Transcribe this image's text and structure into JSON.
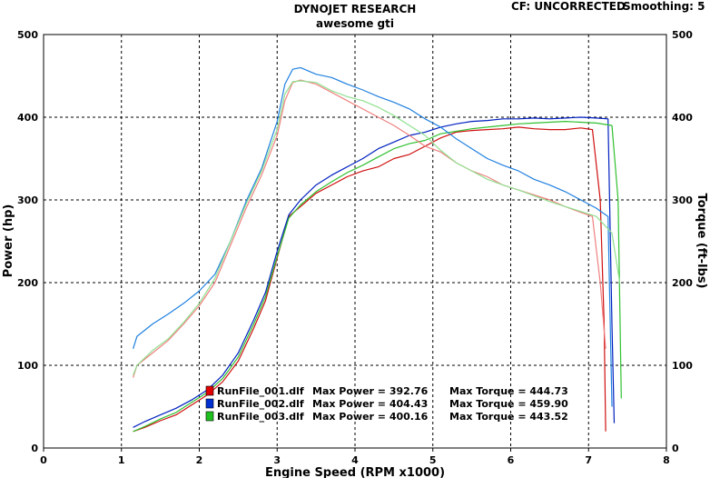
{
  "header": {
    "title": "DYNOJET RESEARCH",
    "subtitle": "awesome gti",
    "cf": "CF: UNCORRECTED",
    "smoothing": "Smoothing: 5"
  },
  "chart_data": {
    "type": "line",
    "title": "DYNOJET RESEARCH",
    "subtitle": "awesome gti",
    "xlabel": "Engine Speed (RPM x1000)",
    "ylabel": "Power (hp)",
    "y2label": "Torque (ft-lbs)",
    "xlim": [
      0,
      8
    ],
    "ylim": [
      0,
      500
    ],
    "y2lim": [
      0,
      500
    ],
    "grid": true,
    "xticks": [
      "0",
      "1",
      "2",
      "3",
      "4",
      "5",
      "6",
      "7",
      "8"
    ],
    "yticks": [
      "0",
      "100",
      "200",
      "300",
      "400",
      "500"
    ],
    "legend_position": "bottom-center",
    "legend": [
      {
        "name": "RunFile_001.dlf",
        "power_text": "Max Power = 392.76",
        "torque_text": "Max Torque = 444.73",
        "color": "#e00000"
      },
      {
        "name": "RunFile_002.dlf",
        "power_text": "Max Power = 404.43",
        "torque_text": "Max Torque = 459.90",
        "color": "#0030d0"
      },
      {
        "name": "RunFile_003.dlf",
        "power_text": "Max Power = 400.16",
        "torque_text": "Max Torque = 443.52",
        "color": "#20c020"
      }
    ],
    "series": [
      {
        "name": "RunFile_001.dlf Power",
        "color": "#d01010",
        "x": [
          1.15,
          1.3,
          1.5,
          1.7,
          1.9,
          2.1,
          2.3,
          2.5,
          2.7,
          2.85,
          3.0,
          3.15,
          3.3,
          3.5,
          3.7,
          3.9,
          4.1,
          4.3,
          4.5,
          4.7,
          4.9,
          5.1,
          5.3,
          5.5,
          5.7,
          5.9,
          6.1,
          6.3,
          6.5,
          6.7,
          6.9,
          7.05,
          7.15,
          7.2,
          7.22
        ],
        "y": [
          20,
          25,
          33,
          40,
          52,
          64,
          80,
          105,
          145,
          178,
          230,
          280,
          292,
          308,
          318,
          328,
          335,
          340,
          350,
          355,
          365,
          375,
          382,
          384,
          385,
          386,
          388,
          386,
          385,
          385,
          387,
          385,
          300,
          150,
          20
        ]
      },
      {
        "name": "RunFile_002.dlf Power",
        "color": "#0020c0",
        "x": [
          1.15,
          1.3,
          1.5,
          1.7,
          1.9,
          2.1,
          2.3,
          2.5,
          2.7,
          2.85,
          3.0,
          3.15,
          3.3,
          3.5,
          3.7,
          3.9,
          4.1,
          4.3,
          4.5,
          4.7,
          4.9,
          5.1,
          5.3,
          5.5,
          5.7,
          5.9,
          6.1,
          6.3,
          6.5,
          6.7,
          6.9,
          7.1,
          7.25,
          7.3,
          7.33
        ],
        "y": [
          25,
          32,
          40,
          48,
          58,
          70,
          88,
          115,
          155,
          188,
          238,
          282,
          300,
          318,
          330,
          340,
          350,
          362,
          370,
          378,
          382,
          388,
          392,
          395,
          396,
          398,
          398,
          399,
          398,
          399,
          400,
          399,
          398,
          150,
          30
        ]
      },
      {
        "name": "RunFile_003.dlf Power",
        "color": "#30c030",
        "x": [
          1.15,
          1.3,
          1.5,
          1.7,
          1.9,
          2.1,
          2.3,
          2.5,
          2.7,
          2.85,
          3.0,
          3.15,
          3.3,
          3.5,
          3.7,
          3.9,
          4.1,
          4.3,
          4.5,
          4.7,
          4.9,
          5.1,
          5.3,
          5.5,
          5.7,
          5.9,
          6.1,
          6.3,
          6.5,
          6.7,
          6.9,
          7.1,
          7.3,
          7.38,
          7.42
        ],
        "y": [
          20,
          26,
          35,
          43,
          55,
          67,
          84,
          110,
          150,
          183,
          232,
          278,
          294,
          310,
          322,
          333,
          342,
          352,
          362,
          368,
          372,
          380,
          383,
          386,
          388,
          390,
          392,
          393,
          394,
          395,
          394,
          393,
          390,
          300,
          60
        ]
      },
      {
        "name": "RunFile_001.dlf Torque",
        "color": "#f08080",
        "x": [
          1.15,
          1.2,
          1.4,
          1.6,
          1.8,
          2.0,
          2.2,
          2.4,
          2.6,
          2.8,
          3.0,
          3.1,
          3.2,
          3.3,
          3.5,
          3.7,
          3.9,
          4.1,
          4.3,
          4.5,
          4.7,
          4.9,
          5.1,
          5.3,
          5.5,
          5.7,
          5.9,
          6.1,
          6.3,
          6.5,
          6.7,
          6.9,
          7.05,
          7.15,
          7.22
        ],
        "y": [
          85,
          100,
          115,
          130,
          150,
          172,
          200,
          245,
          290,
          330,
          378,
          420,
          442,
          445,
          440,
          430,
          420,
          410,
          400,
          390,
          378,
          365,
          358,
          345,
          335,
          328,
          318,
          312,
          306,
          300,
          292,
          285,
          280,
          200,
          120
        ]
      },
      {
        "name": "RunFile_002.dlf Torque",
        "color": "#2080e0",
        "x": [
          1.15,
          1.2,
          1.4,
          1.6,
          1.8,
          2.0,
          2.2,
          2.4,
          2.6,
          2.8,
          3.0,
          3.1,
          3.2,
          3.3,
          3.5,
          3.7,
          3.9,
          4.1,
          4.3,
          4.5,
          4.7,
          4.9,
          5.1,
          5.3,
          5.5,
          5.7,
          5.9,
          6.1,
          6.3,
          6.5,
          6.7,
          6.9,
          7.1,
          7.25,
          7.3
        ],
        "y": [
          120,
          135,
          150,
          162,
          175,
          190,
          210,
          250,
          298,
          338,
          395,
          440,
          458,
          460,
          452,
          448,
          440,
          433,
          425,
          418,
          410,
          398,
          388,
          374,
          362,
          350,
          342,
          335,
          325,
          318,
          310,
          300,
          290,
          280,
          50
        ]
      },
      {
        "name": "RunFile_003.dlf Torque",
        "color": "#90e090",
        "x": [
          1.15,
          1.2,
          1.4,
          1.6,
          1.8,
          2.0,
          2.2,
          2.4,
          2.6,
          2.8,
          3.0,
          3.1,
          3.2,
          3.3,
          3.5,
          3.7,
          3.9,
          4.1,
          4.3,
          4.5,
          4.7,
          4.9,
          5.1,
          5.3,
          5.5,
          5.7,
          5.9,
          6.1,
          6.3,
          6.5,
          6.7,
          6.9,
          7.1,
          7.3,
          7.4
        ],
        "y": [
          88,
          100,
          118,
          132,
          152,
          175,
          205,
          250,
          295,
          335,
          385,
          428,
          443,
          444,
          442,
          432,
          425,
          420,
          412,
          402,
          390,
          378,
          360,
          345,
          335,
          325,
          318,
          312,
          305,
          298,
          292,
          286,
          280,
          260,
          200
        ]
      }
    ]
  }
}
